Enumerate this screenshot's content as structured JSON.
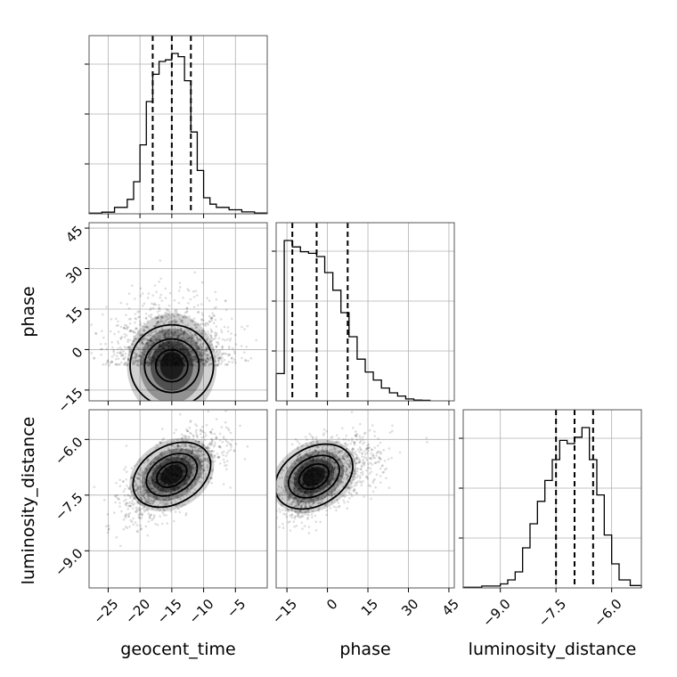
{
  "chart_data": {
    "type": "corner",
    "parameters": [
      "geocent_time",
      "phase",
      "luminosity_distance"
    ],
    "grid": true,
    "quantile_lines_style": "dashed",
    "histograms": {
      "geocent_time": {
        "range": [
          -28,
          0
        ],
        "bins": [
          [
            -28,
            -26,
            0.004
          ],
          [
            -26,
            -24,
            0.01
          ],
          [
            -24,
            -22,
            0.04
          ],
          [
            -22,
            -21,
            0.09
          ],
          [
            -21,
            -20,
            0.2
          ],
          [
            -20,
            -19,
            0.43
          ],
          [
            -19,
            -18,
            0.7
          ],
          [
            -18,
            -17,
            0.87
          ],
          [
            -17,
            -16,
            0.95
          ],
          [
            -16,
            -15,
            0.96
          ],
          [
            -15,
            -14,
            1.0
          ],
          [
            -14,
            -13,
            0.98
          ],
          [
            -13,
            -12,
            0.83
          ],
          [
            -12,
            -11,
            0.51
          ],
          [
            -11,
            -10,
            0.27
          ],
          [
            -10,
            -9,
            0.1
          ],
          [
            -9,
            -8,
            0.06
          ],
          [
            -8,
            -6,
            0.04
          ],
          [
            -6,
            -4,
            0.025
          ],
          [
            -4,
            -2,
            0.012
          ],
          [
            -2,
            0,
            0.005
          ]
        ],
        "quantiles": [
          -18.0,
          -15.0,
          -12.0
        ],
        "x_ticks": [
          -25,
          -20,
          -15,
          -10,
          -5
        ]
      },
      "phase": {
        "range": [
          -19,
          47
        ],
        "bins": [
          [
            -19,
            -16,
            0.17
          ],
          [
            -16,
            -13,
            1.0
          ],
          [
            -13,
            -10,
            0.96
          ],
          [
            -10,
            -7,
            0.93
          ],
          [
            -7,
            -4,
            0.92
          ],
          [
            -4,
            -1,
            0.9
          ],
          [
            -1,
            2,
            0.8
          ],
          [
            2,
            5,
            0.69
          ],
          [
            5,
            8,
            0.55
          ],
          [
            8,
            11,
            0.4
          ],
          [
            11,
            14,
            0.26
          ],
          [
            14,
            17,
            0.18
          ],
          [
            17,
            20,
            0.13
          ],
          [
            20,
            23,
            0.08
          ],
          [
            23,
            26,
            0.05
          ],
          [
            26,
            29,
            0.03
          ],
          [
            29,
            32,
            0.012
          ],
          [
            32,
            35,
            0.005
          ],
          [
            35,
            38,
            0.003
          ]
        ],
        "quantiles": [
          -13.0,
          -4.0,
          7.5
        ],
        "x_ticks": [
          -15,
          0,
          15,
          30,
          45
        ]
      },
      "luminosity_distance": {
        "range": [
          -10,
          -5.2
        ],
        "bins": [
          [
            -10,
            -9.5,
            0.004
          ],
          [
            -9.5,
            -9.0,
            0.012
          ],
          [
            -9.0,
            -8.8,
            0.025
          ],
          [
            -8.8,
            -8.6,
            0.05
          ],
          [
            -8.6,
            -8.4,
            0.1
          ],
          [
            -8.4,
            -8.2,
            0.25
          ],
          [
            -8.2,
            -8.0,
            0.4
          ],
          [
            -8.0,
            -7.8,
            0.54
          ],
          [
            -7.8,
            -7.6,
            0.67
          ],
          [
            -7.6,
            -7.4,
            0.8
          ],
          [
            -7.4,
            -7.2,
            0.92
          ],
          [
            -7.2,
            -7.0,
            0.9
          ],
          [
            -7.0,
            -6.8,
            0.94
          ],
          [
            -6.8,
            -6.6,
            1.0
          ],
          [
            -6.6,
            -6.4,
            0.8
          ],
          [
            -6.4,
            -6.2,
            0.58
          ],
          [
            -6.2,
            -6.0,
            0.33
          ],
          [
            -6.0,
            -5.8,
            0.15
          ],
          [
            -5.8,
            -5.5,
            0.05
          ],
          [
            -5.5,
            -5.2,
            0.015
          ]
        ],
        "quantiles": [
          -7.5,
          -7.0,
          -6.5
        ],
        "x_ticks": [
          -9.0,
          -7.5,
          -6.0
        ]
      }
    },
    "panels_2d": [
      {
        "x": "geocent_time",
        "y": "phase",
        "xlim": [
          -28,
          0
        ],
        "ylim": [
          -19,
          47
        ],
        "center": [
          -15,
          -6
        ],
        "spread": [
          4.2,
          8.5
        ],
        "corr": 0.0,
        "y_ticks": [
          -15,
          0,
          15,
          30,
          45
        ]
      },
      {
        "x": "geocent_time",
        "y": "luminosity_distance",
        "xlim": [
          -28,
          0
        ],
        "ylim": [
          -10,
          -5.2
        ],
        "center": [
          -15,
          -6.95
        ],
        "spread": [
          3.6,
          0.55
        ],
        "corr": 0.65,
        "y_ticks": [
          -9.0,
          -7.5,
          -6.0
        ]
      },
      {
        "x": "phase",
        "y": "luminosity_distance",
        "xlim": [
          -19,
          47
        ],
        "ylim": [
          -10,
          -5.2
        ],
        "center": [
          -5,
          -7.0
        ],
        "spread": [
          9,
          0.5
        ],
        "corr": 0.5
      }
    ],
    "tick_labels": {
      "geocent_time": [
        "−25",
        "−20",
        "−15",
        "−10",
        "−5"
      ],
      "phase": [
        "−15",
        "0",
        "15",
        "30",
        "45"
      ],
      "luminosity_distance": [
        "−9.0",
        "−7.5",
        "−6.0"
      ]
    },
    "axis_labels": {
      "bottom": [
        "geocent_time",
        "phase",
        "luminosity_distance"
      ],
      "left": [
        "phase",
        "luminosity_distance"
      ]
    }
  }
}
